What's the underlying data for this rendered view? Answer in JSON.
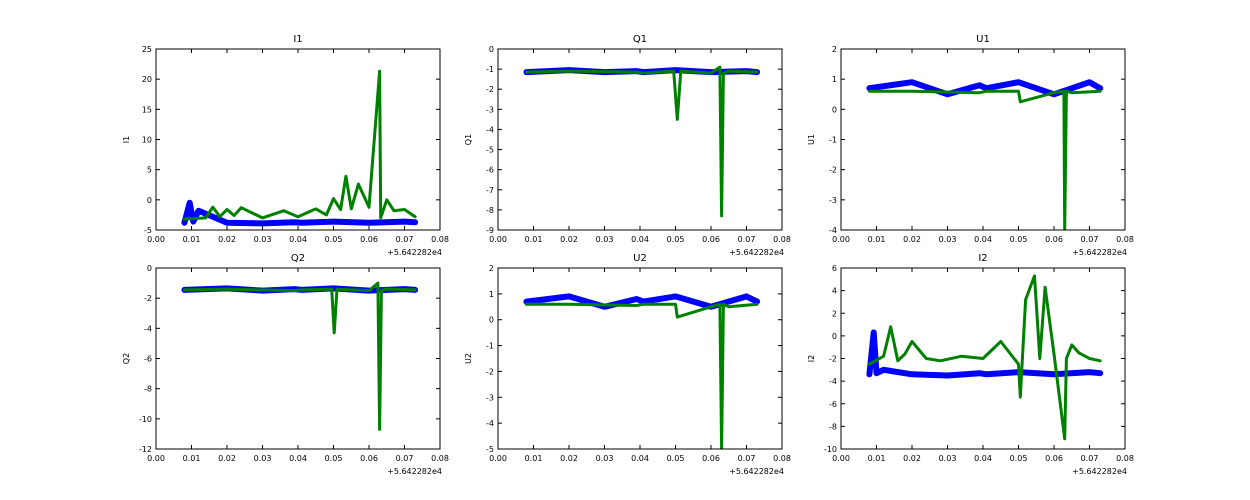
{
  "colors": {
    "blue": "#0000ff",
    "green": "#008000"
  },
  "chart_data": [
    {
      "type": "line",
      "title": "I1",
      "ylabel": "I1",
      "xlim": [
        0.0,
        0.08
      ],
      "ylim": [
        -5,
        25
      ],
      "xticks": [
        "0.00",
        "0.01",
        "0.02",
        "0.03",
        "0.04",
        "0.05",
        "0.06",
        "0.07",
        "0.08"
      ],
      "yticks": [
        "-5",
        "0",
        "5",
        "10",
        "15",
        "20",
        "25"
      ],
      "x_offset_label": "+5.642282e4",
      "series": [
        {
          "color": "blue",
          "x": [
            0.008,
            0.0095,
            0.0105,
            0.012,
            0.02,
            0.03,
            0.039,
            0.041,
            0.05,
            0.06,
            0.07,
            0.073
          ],
          "y": [
            -3.8,
            -0.5,
            -3.6,
            -1.8,
            -3.8,
            -3.9,
            -3.7,
            -3.8,
            -3.6,
            -3.8,
            -3.6,
            -3.7
          ]
        },
        {
          "color": "green",
          "x": [
            0.008,
            0.014,
            0.016,
            0.018,
            0.02,
            0.022,
            0.024,
            0.03,
            0.036,
            0.04,
            0.045,
            0.048,
            0.05,
            0.052,
            0.0535,
            0.055,
            0.057,
            0.06,
            0.063,
            0.0633,
            0.065,
            0.067,
            0.07,
            0.073
          ],
          "y": [
            -3.2,
            -3.0,
            -1.2,
            -2.8,
            -1.6,
            -2.6,
            -1.3,
            -3.0,
            -1.8,
            -2.8,
            -1.5,
            -2.5,
            0.2,
            -1.6,
            3.9,
            -1.5,
            2.6,
            -1.2,
            21.3,
            -3.0,
            0.0,
            -1.8,
            -1.6,
            -2.8
          ]
        }
      ]
    },
    {
      "type": "line",
      "title": "Q1",
      "ylabel": "Q1",
      "xlim": [
        0.0,
        0.08
      ],
      "ylim": [
        -9,
        0
      ],
      "xticks": [
        "0.00",
        "0.01",
        "0.02",
        "0.03",
        "0.04",
        "0.05",
        "0.06",
        "0.07",
        "0.08"
      ],
      "yticks": [
        "-9",
        "-8",
        "-7",
        "-6",
        "-5",
        "-4",
        "-3",
        "-2",
        "-1",
        "0"
      ],
      "x_offset_label": "+5.642282e4",
      "series": [
        {
          "color": "blue",
          "x": [
            0.008,
            0.02,
            0.03,
            0.039,
            0.041,
            0.05,
            0.06,
            0.07,
            0.073
          ],
          "y": [
            -1.15,
            -1.05,
            -1.15,
            -1.1,
            -1.15,
            -1.05,
            -1.15,
            -1.1,
            -1.15
          ]
        },
        {
          "color": "green",
          "x": [
            0.008,
            0.02,
            0.039,
            0.041,
            0.0495,
            0.0505,
            0.0515,
            0.06,
            0.0625,
            0.063,
            0.0635,
            0.065,
            0.073
          ],
          "y": [
            -1.15,
            -1.1,
            -1.15,
            -1.2,
            -1.1,
            -3.5,
            -1.1,
            -1.2,
            -0.9,
            -8.3,
            -1.2,
            -1.1,
            -1.15
          ]
        }
      ]
    },
    {
      "type": "line",
      "title": "U1",
      "ylabel": "U1",
      "xlim": [
        0.0,
        0.08
      ],
      "ylim": [
        -4,
        2
      ],
      "xticks": [
        "0.00",
        "0.01",
        "0.02",
        "0.03",
        "0.04",
        "0.05",
        "0.06",
        "0.07",
        "0.08"
      ],
      "yticks": [
        "-4",
        "-3",
        "-2",
        "-1",
        "0",
        "1",
        "2"
      ],
      "x_offset_label": "+5.642282e4",
      "series": [
        {
          "color": "blue",
          "x": [
            0.008,
            0.02,
            0.03,
            0.039,
            0.041,
            0.05,
            0.06,
            0.07,
            0.073
          ],
          "y": [
            0.7,
            0.9,
            0.5,
            0.8,
            0.7,
            0.9,
            0.5,
            0.9,
            0.7
          ]
        },
        {
          "color": "green",
          "x": [
            0.008,
            0.02,
            0.039,
            0.041,
            0.05,
            0.0505,
            0.06,
            0.0628,
            0.063,
            0.0635,
            0.065,
            0.073
          ],
          "y": [
            0.6,
            0.6,
            0.55,
            0.6,
            0.6,
            0.25,
            0.55,
            0.6,
            -3.95,
            0.6,
            0.55,
            0.6
          ]
        }
      ]
    },
    {
      "type": "line",
      "title": "Q2",
      "ylabel": "Q2",
      "xlim": [
        0.0,
        0.08
      ],
      "ylim": [
        -12,
        0
      ],
      "xticks": [
        "0.00",
        "0.01",
        "0.02",
        "0.03",
        "0.04",
        "0.05",
        "0.06",
        "0.07",
        "0.08"
      ],
      "yticks": [
        "-12",
        "-10",
        "-8",
        "-6",
        "-4",
        "-2",
        "0"
      ],
      "x_offset_label": "+5.642282e4",
      "series": [
        {
          "color": "blue",
          "x": [
            0.008,
            0.02,
            0.03,
            0.039,
            0.041,
            0.05,
            0.06,
            0.07,
            0.073
          ],
          "y": [
            -1.45,
            -1.35,
            -1.5,
            -1.4,
            -1.45,
            -1.35,
            -1.5,
            -1.4,
            -1.45
          ]
        },
        {
          "color": "green",
          "x": [
            0.008,
            0.02,
            0.039,
            0.041,
            0.0495,
            0.0502,
            0.051,
            0.06,
            0.0625,
            0.063,
            0.0635,
            0.065,
            0.073
          ],
          "y": [
            -1.45,
            -1.4,
            -1.5,
            -1.45,
            -1.4,
            -4.3,
            -1.4,
            -1.5,
            -1.0,
            -10.7,
            -1.5,
            -1.4,
            -1.45
          ]
        }
      ]
    },
    {
      "type": "line",
      "title": "U2",
      "ylabel": "U2",
      "xlim": [
        0.0,
        0.08
      ],
      "ylim": [
        -5,
        2
      ],
      "xticks": [
        "0.00",
        "0.01",
        "0.02",
        "0.03",
        "0.04",
        "0.05",
        "0.06",
        "0.07",
        "0.08"
      ],
      "yticks": [
        "-5",
        "-4",
        "-3",
        "-2",
        "-1",
        "0",
        "1",
        "2"
      ],
      "x_offset_label": "+5.642282e4",
      "series": [
        {
          "color": "blue",
          "x": [
            0.008,
            0.02,
            0.03,
            0.039,
            0.041,
            0.05,
            0.06,
            0.07,
            0.073
          ],
          "y": [
            0.7,
            0.9,
            0.5,
            0.8,
            0.7,
            0.9,
            0.5,
            0.9,
            0.7
          ]
        },
        {
          "color": "green",
          "x": [
            0.008,
            0.02,
            0.039,
            0.041,
            0.05,
            0.0505,
            0.06,
            0.0625,
            0.063,
            0.0635,
            0.065,
            0.073
          ],
          "y": [
            0.6,
            0.6,
            0.55,
            0.6,
            0.6,
            0.1,
            0.5,
            0.6,
            -5.0,
            0.6,
            0.5,
            0.6
          ]
        }
      ]
    },
    {
      "type": "line",
      "title": "I2",
      "ylabel": "I2",
      "xlim": [
        0.0,
        0.08
      ],
      "ylim": [
        -10,
        6
      ],
      "xticks": [
        "0.00",
        "0.01",
        "0.02",
        "0.03",
        "0.04",
        "0.05",
        "0.06",
        "0.07",
        "0.08"
      ],
      "yticks": [
        "-10",
        "-8",
        "-6",
        "-4",
        "-2",
        "0",
        "2",
        "4",
        "6"
      ],
      "x_offset_label": "+5.642282e4",
      "series": [
        {
          "color": "blue",
          "x": [
            0.008,
            0.0092,
            0.01,
            0.012,
            0.02,
            0.03,
            0.039,
            0.041,
            0.05,
            0.06,
            0.07,
            0.073
          ],
          "y": [
            -3.4,
            0.3,
            -3.3,
            -3.0,
            -3.4,
            -3.5,
            -3.3,
            -3.4,
            -3.2,
            -3.4,
            -3.2,
            -3.3
          ]
        },
        {
          "color": "green",
          "x": [
            0.008,
            0.012,
            0.014,
            0.016,
            0.018,
            0.02,
            0.024,
            0.028,
            0.034,
            0.04,
            0.045,
            0.05,
            0.0505,
            0.052,
            0.0545,
            0.056,
            0.0575,
            0.06,
            0.063,
            0.0635,
            0.065,
            0.067,
            0.07,
            0.073
          ],
          "y": [
            -2.5,
            -1.8,
            0.8,
            -2.2,
            -1.6,
            -0.5,
            -2.0,
            -2.2,
            -1.8,
            -2.0,
            -0.5,
            -2.5,
            -5.4,
            3.2,
            5.3,
            -2.0,
            4.3,
            -1.6,
            -9.1,
            -2.0,
            -0.8,
            -1.5,
            -2.0,
            -2.2
          ]
        }
      ]
    }
  ]
}
